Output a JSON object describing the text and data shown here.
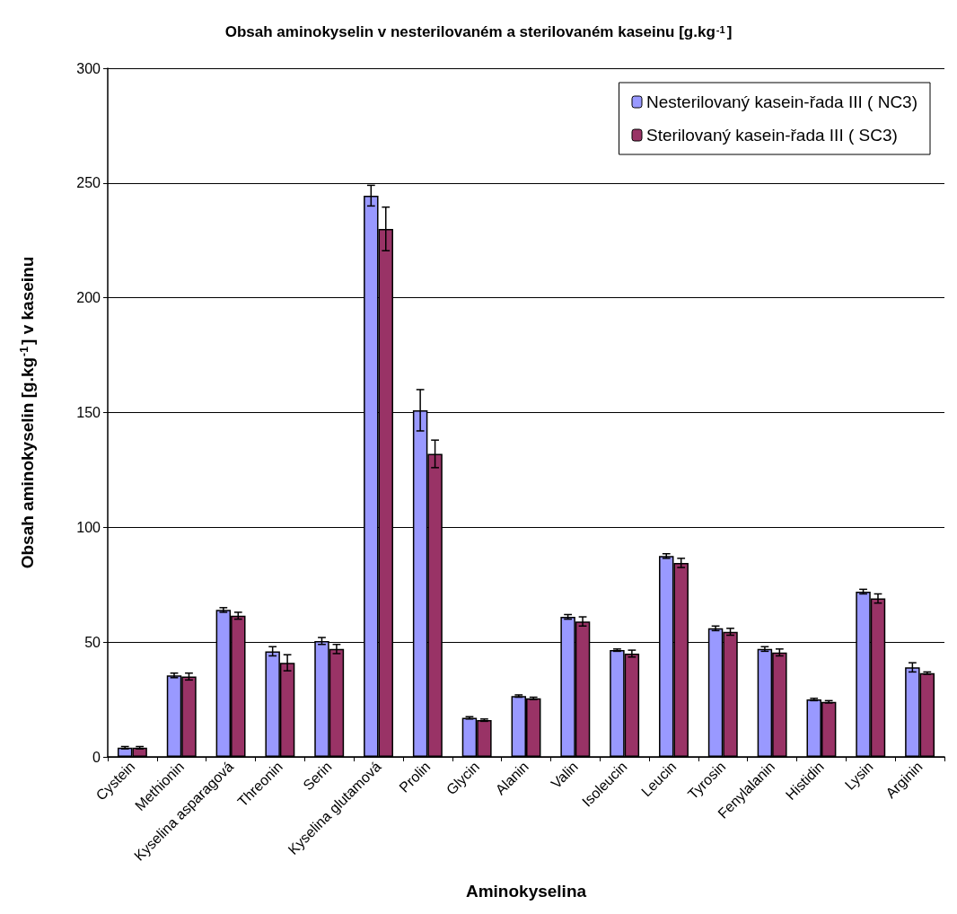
{
  "chart_data": {
    "type": "bar",
    "title": "Obsah aminokyselin v nesterilovaném a sterilovaném kaseinu [g.kg$^{-1}$]",
    "xlabel": "Aminokyselina",
    "ylabel": "Obsah aminokyselin [g.kg$^{-1}$] v kaseinu",
    "categories": [
      "Cystein",
      "Methionin",
      "Kyselina asparagová",
      "Threonin",
      "Serin",
      "Kyselina glutamová",
      "Prolin",
      "Glycin",
      "Alanin",
      "Valin",
      "Isoleucin",
      "Leucin",
      "Tyrosin",
      "Fenylalanin",
      "Histidin",
      "Lysin",
      "Arginin"
    ],
    "series": [
      {
        "name": "Nesterilovaný kasein-řada III ( NC3)",
        "color": "#9999ff",
        "values": [
          4,
          35.5,
          64,
          46,
          50.5,
          244.5,
          151,
          17,
          26.5,
          61,
          46.5,
          87.5,
          56,
          47,
          25,
          72,
          39
        ],
        "errors": [
          0.5,
          1,
          1,
          2,
          1.5,
          4.5,
          9,
          0.5,
          0.5,
          1,
          0.5,
          1,
          1,
          1,
          0.5,
          1,
          2
        ]
      },
      {
        "name": "Sterilovaný kasein-řada III ( SC3)",
        "color": "#993366",
        "values": [
          4,
          35,
          61.5,
          41,
          47,
          230,
          132,
          16,
          25.5,
          59,
          45,
          84.5,
          54.5,
          45.5,
          24,
          69,
          36.5
        ],
        "errors": [
          0.5,
          1.5,
          1.5,
          3.5,
          2,
          9.5,
          6,
          0.5,
          0.5,
          2,
          1.5,
          2,
          1.5,
          1.5,
          0.5,
          2,
          0.5
        ]
      }
    ],
    "ylim": [
      0,
      300
    ],
    "yticks": [
      0,
      50,
      100,
      150,
      200,
      250,
      300
    ],
    "grid": "y",
    "legend": "top right"
  }
}
